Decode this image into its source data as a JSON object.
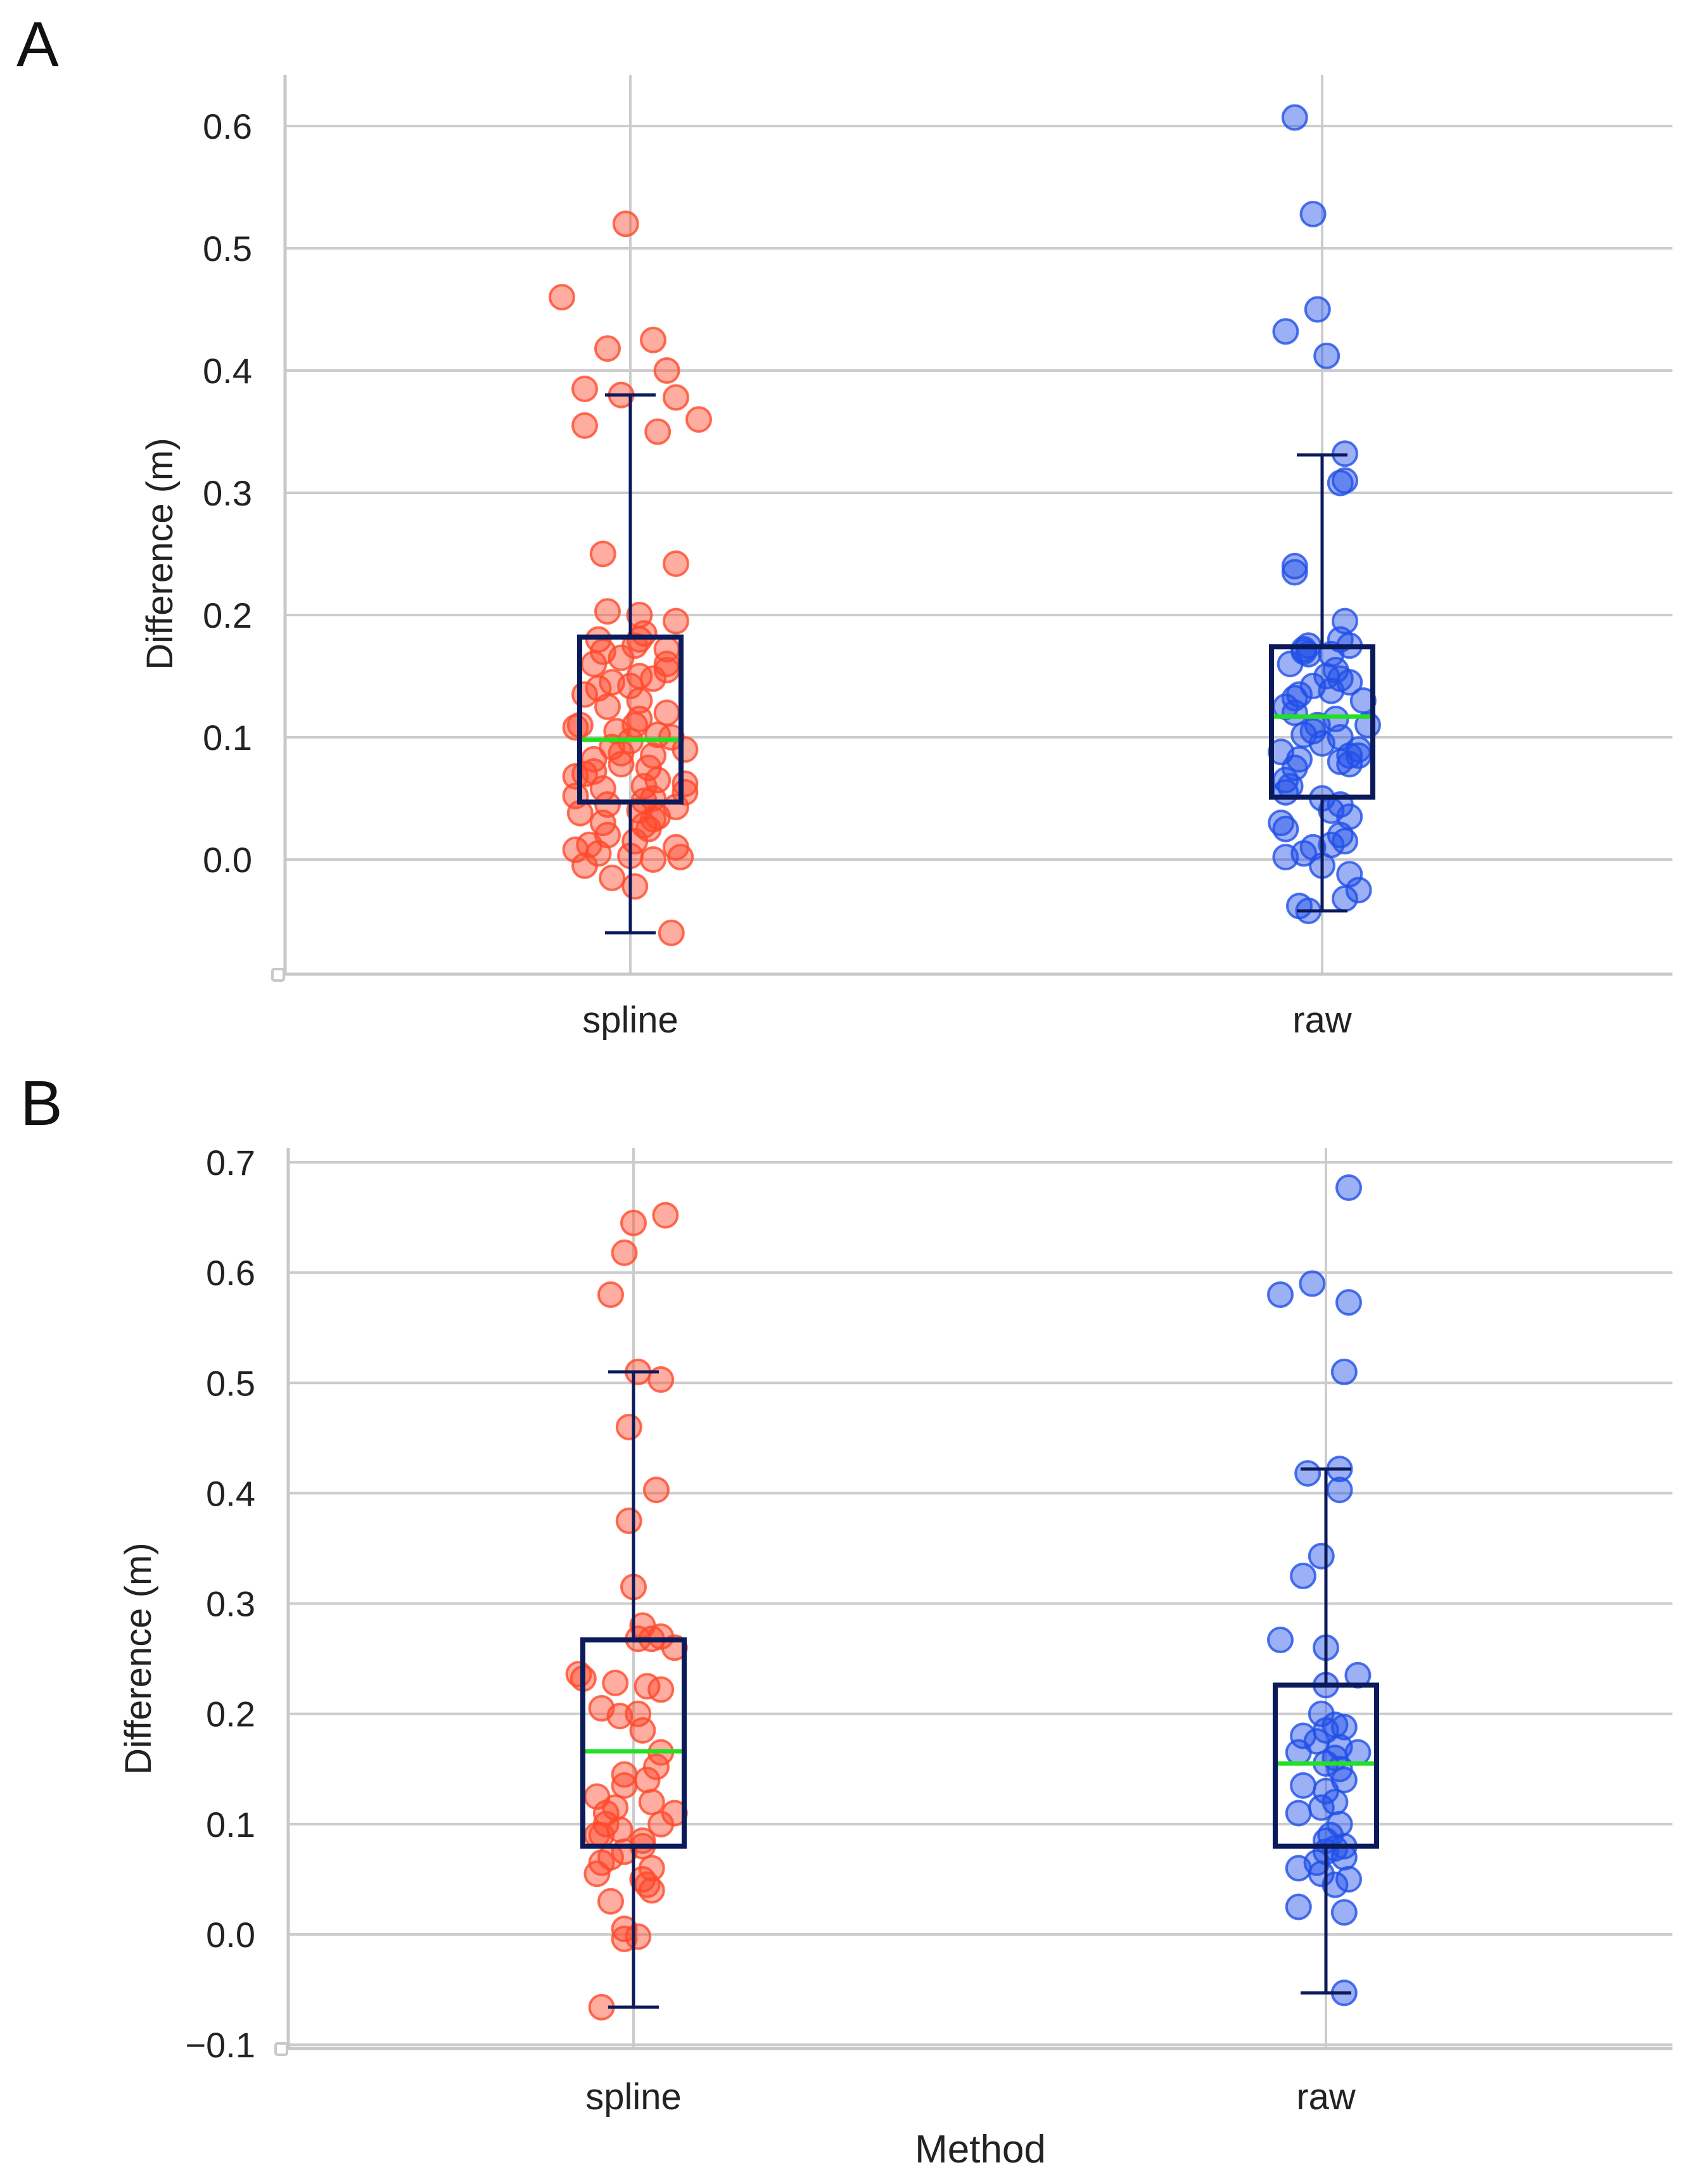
{
  "figure": {
    "panel_labels": [
      "A",
      "B"
    ],
    "colors": {
      "spline": "#ff4a2c",
      "raw": "#2150e8",
      "box": "#0b1a5a",
      "median": "#22e022",
      "grid": "#cccccc",
      "axis": "#c8c8c8",
      "text": "#222222"
    }
  },
  "chart_data": [
    {
      "panel": "A",
      "type": "box",
      "title": "",
      "xlabel": "",
      "ylabel": "Difference (m)",
      "categories": [
        "spline",
        "raw"
      ],
      "ylim": [
        -0.095,
        0.64
      ],
      "yticks": [
        0.0,
        0.1,
        0.2,
        0.3,
        0.4,
        0.5,
        0.6
      ],
      "ytick_labels": [
        "0.0",
        "0.1",
        "0.2",
        "0.3",
        "0.4",
        "0.5",
        "0.6"
      ],
      "grid": true,
      "boxes": [
        {
          "category": "spline",
          "whisker_low": -0.06,
          "q1": 0.047,
          "median": 0.098,
          "q3": 0.182,
          "whisker_high": 0.38
        },
        {
          "category": "raw",
          "whisker_low": -0.042,
          "q1": 0.051,
          "median": 0.117,
          "q3": 0.174,
          "whisker_high": 0.331
        }
      ],
      "series": [
        {
          "name": "spline",
          "x_offsets": [
            -0.01,
            -0.15,
            -0.05,
            0.05,
            0.08,
            -0.1,
            0.1,
            -0.02,
            0.06,
            -0.1,
            0.15,
            -0.06,
            0.1,
            0.02,
            -0.05,
            0.1,
            0.03,
            -0.07,
            0.08,
            -0.06,
            -0.02,
            -0.08,
            0.02,
            0.05,
            -0.04,
            0.0,
            -0.1,
            0.08,
            0.02,
            -0.12,
            0.01,
            0.09,
            -0.03,
            0.12,
            0.05,
            -0.08,
            -0.02,
            0.04,
            -0.1,
            0.06,
            0.03,
            -0.06,
            0.12,
            -0.12,
            0.05,
            0.03,
            -0.05,
            0.02,
            -0.11,
            0.06,
            -0.06,
            0.03,
            -0.05,
            0.01,
            0.1,
            -0.12,
            -0.07,
            0.0,
            0.11,
            0.05,
            -0.1,
            -0.04,
            0.01,
            0.09,
            0.02,
            -0.07,
            0.08,
            0.01,
            -0.04,
            -0.12,
            0.1,
            0.05,
            -0.09,
            0.0,
            0.06,
            -0.02,
            -0.05,
            0.08,
            0.12,
            -0.08,
            0.02,
            -0.11,
            0.04
          ],
          "values": [
            0.52,
            0.46,
            0.418,
            0.425,
            0.4,
            0.385,
            0.378,
            0.38,
            0.35,
            0.355,
            0.36,
            0.25,
            0.242,
            0.2,
            0.203,
            0.195,
            0.185,
            0.18,
            0.172,
            0.17,
            0.165,
            0.16,
            0.15,
            0.148,
            0.145,
            0.142,
            0.135,
            0.12,
            0.115,
            0.108,
            0.11,
            0.1,
            0.105,
            0.09,
            0.085,
            0.082,
            0.078,
            0.075,
            0.07,
            0.065,
            0.06,
            0.058,
            0.055,
            0.052,
            0.05,
            0.048,
            0.045,
            0.04,
            0.038,
            0.035,
            0.03,
            0.028,
            0.02,
            0.015,
            0.01,
            0.008,
            0.005,
            0.003,
            0.002,
            0.0,
            -0.005,
            -0.015,
            -0.022,
            -0.06,
            0.13,
            0.14,
            0.16,
            0.175,
            0.092,
            0.068,
            0.043,
            0.033,
            0.012,
            0.097,
            0.102,
            0.087,
            0.125,
            0.155,
            0.062,
            0.072,
            0.18,
            0.11,
            0.025
          ],
          "color": "#ff4a2c"
        },
        {
          "name": "raw",
          "x_offsets": [
            -0.06,
            -0.02,
            -0.01,
            -0.08,
            0.01,
            0.05,
            0.05,
            0.04,
            0.05,
            -0.06,
            -0.06,
            -0.03,
            -0.04,
            0.04,
            0.06,
            0.02,
            -0.04,
            -0.07,
            0.03,
            0.01,
            0.04,
            -0.02,
            -0.05,
            0.09,
            -0.06,
            -0.08,
            -0.06,
            0.03,
            -0.01,
            -0.02,
            0.04,
            -0.04,
            0.0,
            0.08,
            -0.09,
            0.06,
            0.1,
            0.08,
            -0.05,
            0.04,
            0.06,
            -0.06,
            -0.08,
            -0.07,
            -0.08,
            0.0,
            0.04,
            0.02,
            0.06,
            -0.09,
            -0.08,
            0.04,
            0.05,
            0.02,
            -0.02,
            -0.04,
            -0.08,
            0.0,
            0.06,
            0.08,
            0.05,
            -0.05,
            -0.03,
            0.02,
            0.06,
            -0.03
          ],
          "values": [
            0.607,
            0.528,
            0.45,
            0.432,
            0.412,
            0.332,
            0.31,
            0.308,
            0.195,
            0.24,
            0.235,
            0.175,
            0.172,
            0.18,
            0.175,
            0.168,
            0.17,
            0.16,
            0.155,
            0.15,
            0.148,
            0.142,
            0.135,
            0.13,
            0.132,
            0.125,
            0.12,
            0.115,
            0.11,
            0.105,
            0.1,
            0.102,
            0.095,
            0.09,
            0.088,
            0.085,
            0.11,
            0.085,
            0.082,
            0.08,
            0.078,
            0.075,
            0.065,
            0.06,
            0.055,
            0.05,
            0.045,
            0.04,
            0.035,
            0.03,
            0.025,
            0.02,
            0.015,
            0.012,
            0.01,
            0.005,
            0.002,
            -0.005,
            -0.012,
            -0.025,
            -0.032,
            -0.038,
            -0.042,
            0.138,
            0.145,
            0.168
          ],
          "color": "#2150e8"
        }
      ]
    },
    {
      "panel": "B",
      "type": "box",
      "title": "",
      "xlabel": "Method",
      "ylabel": "Difference (m)",
      "categories": [
        "spline",
        "raw"
      ],
      "ylim": [
        -0.1,
        0.715
      ],
      "yticks": [
        -0.1,
        0.0,
        0.1,
        0.2,
        0.3,
        0.4,
        0.5,
        0.6,
        0.7
      ],
      "ytick_labels": [
        "−0.1",
        "0.0",
        "0.1",
        "0.2",
        "0.3",
        "0.4",
        "0.5",
        "0.6",
        "0.7"
      ],
      "grid": true,
      "boxes": [
        {
          "category": "spline",
          "whisker_low": -0.066,
          "q1": 0.08,
          "median": 0.166,
          "q3": 0.267,
          "whisker_high": 0.51
        },
        {
          "category": "raw",
          "whisker_low": -0.053,
          "q1": 0.08,
          "median": 0.155,
          "q3": 0.226,
          "whisker_high": 0.422
        }
      ],
      "series": [
        {
          "name": "spline",
          "x_offsets": [
            0.07,
            0.0,
            -0.02,
            -0.05,
            0.01,
            0.06,
            -0.01,
            0.05,
            -0.01,
            -0.12,
            0.06,
            0.01,
            0.04,
            0.09,
            -0.11,
            -0.04,
            0.03,
            0.06,
            0.01,
            -0.07,
            -0.03,
            0.02,
            0.06,
            0.05,
            -0.02,
            0.09,
            -0.02,
            -0.08,
            0.04,
            -0.04,
            0.06,
            -0.08,
            -0.03,
            -0.06,
            0.02,
            0.02,
            -0.02,
            -0.05,
            -0.07,
            -0.08,
            0.02,
            0.03,
            0.04,
            -0.05,
            -0.02,
            0.01,
            -0.02,
            -0.07,
            0.02,
            0.0,
            -0.07,
            -0.06,
            0.04,
            0.03
          ],
          "values": [
            0.652,
            0.645,
            0.618,
            0.58,
            0.51,
            0.503,
            0.46,
            0.403,
            0.375,
            0.236,
            0.27,
            0.268,
            0.268,
            0.26,
            0.232,
            0.228,
            0.225,
            0.222,
            0.2,
            0.205,
            0.198,
            0.185,
            0.165,
            0.152,
            0.145,
            0.11,
            0.135,
            0.125,
            0.12,
            0.115,
            0.1,
            0.09,
            0.095,
            0.1,
            0.085,
            0.08,
            0.075,
            0.07,
            0.065,
            0.055,
            0.05,
            0.045,
            0.04,
            0.03,
            0.005,
            -0.002,
            -0.004,
            -0.066,
            0.28,
            0.315,
            0.09,
            0.11,
            0.06,
            0.14
          ],
          "color": "#ff4a2c"
        },
        {
          "name": "raw",
          "x_offsets": [
            0.05,
            -0.03,
            -0.1,
            0.05,
            0.04,
            -0.04,
            0.03,
            0.03,
            -0.01,
            -0.05,
            0.0,
            -0.1,
            0.07,
            0.0,
            -0.01,
            0.02,
            0.04,
            0.0,
            -0.05,
            -0.02,
            0.07,
            0.03,
            -0.06,
            0.02,
            0.0,
            0.03,
            0.04,
            0.0,
            -0.05,
            0.02,
            -0.01,
            -0.06,
            0.03,
            0.01,
            0.0,
            0.04,
            0.02,
            0.0,
            0.04,
            -0.02,
            -0.06,
            -0.01,
            0.05,
            0.02,
            -0.06,
            0.04,
            0.04
          ],
          "values": [
            0.677,
            0.59,
            0.58,
            0.573,
            0.51,
            0.418,
            0.422,
            0.403,
            0.343,
            0.325,
            0.26,
            0.267,
            0.235,
            0.226,
            0.2,
            0.19,
            0.188,
            0.185,
            0.18,
            0.175,
            0.165,
            0.17,
            0.165,
            0.16,
            0.155,
            0.15,
            0.14,
            0.13,
            0.135,
            0.12,
            0.115,
            0.11,
            0.1,
            0.09,
            0.085,
            0.08,
            0.078,
            0.075,
            0.07,
            0.065,
            0.06,
            0.055,
            0.05,
            0.045,
            0.025,
            0.02,
            -0.053
          ],
          "color": "#2150e8"
        }
      ]
    }
  ]
}
